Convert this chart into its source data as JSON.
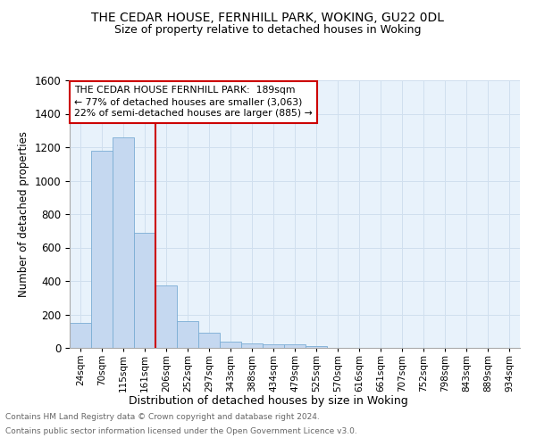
{
  "title1": "THE CEDAR HOUSE, FERNHILL PARK, WOKING, GU22 0DL",
  "title2": "Size of property relative to detached houses in Woking",
  "xlabel": "Distribution of detached houses by size in Woking",
  "ylabel": "Number of detached properties",
  "bar_labels": [
    "24sqm",
    "70sqm",
    "115sqm",
    "161sqm",
    "206sqm",
    "252sqm",
    "297sqm",
    "343sqm",
    "388sqm",
    "434sqm",
    "479sqm",
    "525sqm",
    "570sqm",
    "616sqm",
    "661sqm",
    "707sqm",
    "752sqm",
    "798sqm",
    "843sqm",
    "889sqm",
    "934sqm"
  ],
  "bar_values": [
    148,
    1180,
    1260,
    690,
    375,
    162,
    90,
    38,
    28,
    20,
    20,
    10,
    0,
    0,
    0,
    0,
    0,
    0,
    0,
    0,
    0
  ],
  "bar_color": "#c5d8f0",
  "bar_edge_color": "#7aadd4",
  "vline_x": 4.0,
  "vline_color": "#cc0000",
  "ylim": [
    0,
    1600
  ],
  "yticks": [
    0,
    200,
    400,
    600,
    800,
    1000,
    1200,
    1400,
    1600
  ],
  "annotation_line1": "THE CEDAR HOUSE FERNHILL PARK:  189sqm",
  "annotation_line2": "← 77% of detached houses are smaller (3,063)",
  "annotation_line3": "22% of semi-detached houses are larger (885) →",
  "annotation_box_color": "#cc0000",
  "footer1": "Contains HM Land Registry data © Crown copyright and database right 2024.",
  "footer2": "Contains public sector information licensed under the Open Government Licence v3.0.",
  "grid_color": "#d0dfee",
  "background_color": "#e8f2fb",
  "fig_width": 6.0,
  "fig_height": 5.0,
  "fig_dpi": 100
}
